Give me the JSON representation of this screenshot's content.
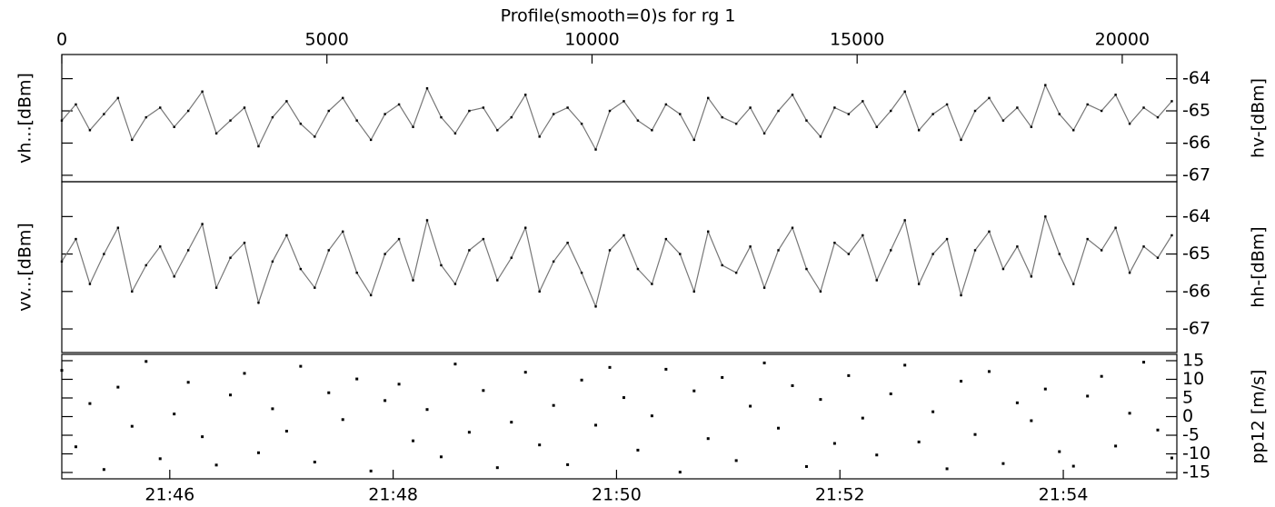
{
  "chart_data": [
    {
      "type": "line",
      "title": "Profile(smooth=0)s for rg 1",
      "left_label": "vh...[dBm]",
      "right_label": "hv-[dBm]",
      "xlim": [
        0,
        21030
      ],
      "xticks": [
        0,
        5000,
        10000,
        15000,
        20000
      ],
      "x": [
        0,
        265,
        530,
        795,
        1060,
        1325,
        1590,
        1855,
        2120,
        2385,
        2650,
        2915,
        3180,
        3445,
        3710,
        3975,
        4240,
        4505,
        4770,
        5035,
        5300,
        5565,
        5830,
        6095,
        6360,
        6625,
        6890,
        7155,
        7420,
        7685,
        7950,
        8215,
        8480,
        8745,
        9010,
        9275,
        9540,
        9805,
        10070,
        10335,
        10600,
        10865,
        11130,
        11395,
        11660,
        11925,
        12190,
        12455,
        12720,
        12985,
        13250,
        13515,
        13780,
        14045,
        14310,
        14575,
        14840,
        15105,
        15370,
        15635,
        15900,
        16165,
        16430,
        16695,
        16960,
        17225,
        17490,
        17755,
        18020,
        18285,
        18550,
        18815,
        19080,
        19345,
        19610,
        19875,
        20140,
        20405,
        20670,
        20935
      ],
      "values": [
        -65.3,
        -64.8,
        -65.6,
        -65.1,
        -64.6,
        -65.9,
        -65.2,
        -64.9,
        -65.5,
        -65.0,
        -64.4,
        -65.7,
        -65.3,
        -64.9,
        -66.1,
        -65.2,
        -64.7,
        -65.4,
        -65.8,
        -65.0,
        -64.6,
        -65.3,
        -65.9,
        -65.1,
        -64.8,
        -65.5,
        -64.3,
        -65.2,
        -65.7,
        -65.0,
        -64.9,
        -65.6,
        -65.2,
        -64.5,
        -65.8,
        -65.1,
        -64.9,
        -65.4,
        -66.2,
        -65.0,
        -64.7,
        -65.3,
        -65.6,
        -64.8,
        -65.1,
        -65.9,
        -64.6,
        -65.2,
        -65.4,
        -64.9,
        -65.7,
        -65.0,
        -64.5,
        -65.3,
        -65.8,
        -64.9,
        -65.1,
        -64.7,
        -65.5,
        -65.0,
        -64.4,
        -65.6,
        -65.1,
        -64.8,
        -65.9,
        -65.0,
        -64.6,
        -65.3,
        -64.9,
        -65.5,
        -64.2,
        -65.1,
        -65.6,
        -64.8,
        -65.0,
        -64.5,
        -65.4,
        -64.9,
        -65.2,
        -64.7
      ],
      "ylim": [
        -67.2,
        -63.25
      ],
      "yticks": [
        -64,
        -65,
        -66,
        -67
      ],
      "line_color": "#777777",
      "color": "#000000"
    },
    {
      "type": "line",
      "left_label": "vv...[dBm]",
      "right_label": "hh-[dBm]",
      "values": [
        -65.2,
        -64.6,
        -65.8,
        -65.0,
        -64.3,
        -66.0,
        -65.3,
        -64.8,
        -65.6,
        -64.9,
        -64.2,
        -65.9,
        -65.1,
        -64.7,
        -66.3,
        -65.2,
        -64.5,
        -65.4,
        -65.9,
        -64.9,
        -64.4,
        -65.5,
        -66.1,
        -65.0,
        -64.6,
        -65.7,
        -64.1,
        -65.3,
        -65.8,
        -64.9,
        -64.6,
        -65.7,
        -65.1,
        -64.3,
        -66.0,
        -65.2,
        -64.7,
        -65.5,
        -66.4,
        -64.9,
        -64.5,
        -65.4,
        -65.8,
        -64.6,
        -65.0,
        -66.0,
        -64.4,
        -65.3,
        -65.5,
        -64.8,
        -65.9,
        -64.9,
        -64.3,
        -65.4,
        -66.0,
        -64.7,
        -65.0,
        -64.5,
        -65.7,
        -64.9,
        -64.1,
        -65.8,
        -65.0,
        -64.6,
        -66.1,
        -64.9,
        -64.4,
        -65.4,
        -64.8,
        -65.6,
        -64.0,
        -65.0,
        -65.8,
        -64.6,
        -64.9,
        -64.3,
        -65.5,
        -64.8,
        -65.1,
        -64.5
      ],
      "ylim": [
        -67.63,
        -63.07
      ],
      "yticks": [
        -64,
        -65,
        -66,
        -67
      ],
      "line_color": "#777777",
      "color": "#000000"
    },
    {
      "type": "scatter",
      "right_label": "pp12 [m/s]",
      "values": [
        12.4,
        -8.1,
        3.5,
        -14.2,
        7.9,
        -2.6,
        14.8,
        -11.3,
        0.7,
        9.2,
        -5.4,
        -13.0,
        5.8,
        11.6,
        -9.7,
        2.1,
        -3.9,
        13.5,
        -12.2,
        6.4,
        -0.8,
        10.1,
        -14.6,
        4.3,
        8.7,
        -6.5,
        1.9,
        -10.8,
        14.1,
        -4.2,
        7.0,
        -13.7,
        -1.5,
        11.9,
        -7.6,
        3.0,
        -12.9,
        9.8,
        -2.3,
        13.2,
        5.1,
        -9.0,
        0.2,
        12.7,
        -14.9,
        6.9,
        -5.9,
        10.5,
        -11.8,
        2.8,
        14.4,
        -3.1,
        8.3,
        -13.4,
        4.6,
        -7.2,
        11.0,
        -0.4,
        -10.3,
        6.1,
        13.8,
        -6.8,
        1.3,
        -14.0,
        9.5,
        -4.8,
        12.1,
        -12.6,
        3.7,
        -1.1,
        7.4,
        -9.4,
        -13.3,
        5.5,
        10.8,
        -7.9,
        0.9,
        14.6,
        -3.6,
        -11.1
      ],
      "ylim": [
        -16.7,
        16.7
      ],
      "yticks": [
        15,
        10,
        5,
        0,
        -5,
        -10,
        -15
      ],
      "color": "#000000",
      "time_xlim": [
        78302,
        78901
      ],
      "time_xticks": [
        {
          "value": 78360,
          "label": "21:46"
        },
        {
          "value": 78480,
          "label": "21:48"
        },
        {
          "value": 78600,
          "label": "21:50"
        },
        {
          "value": 78720,
          "label": "21:52"
        },
        {
          "value": 78840,
          "label": "21:54"
        }
      ]
    }
  ]
}
